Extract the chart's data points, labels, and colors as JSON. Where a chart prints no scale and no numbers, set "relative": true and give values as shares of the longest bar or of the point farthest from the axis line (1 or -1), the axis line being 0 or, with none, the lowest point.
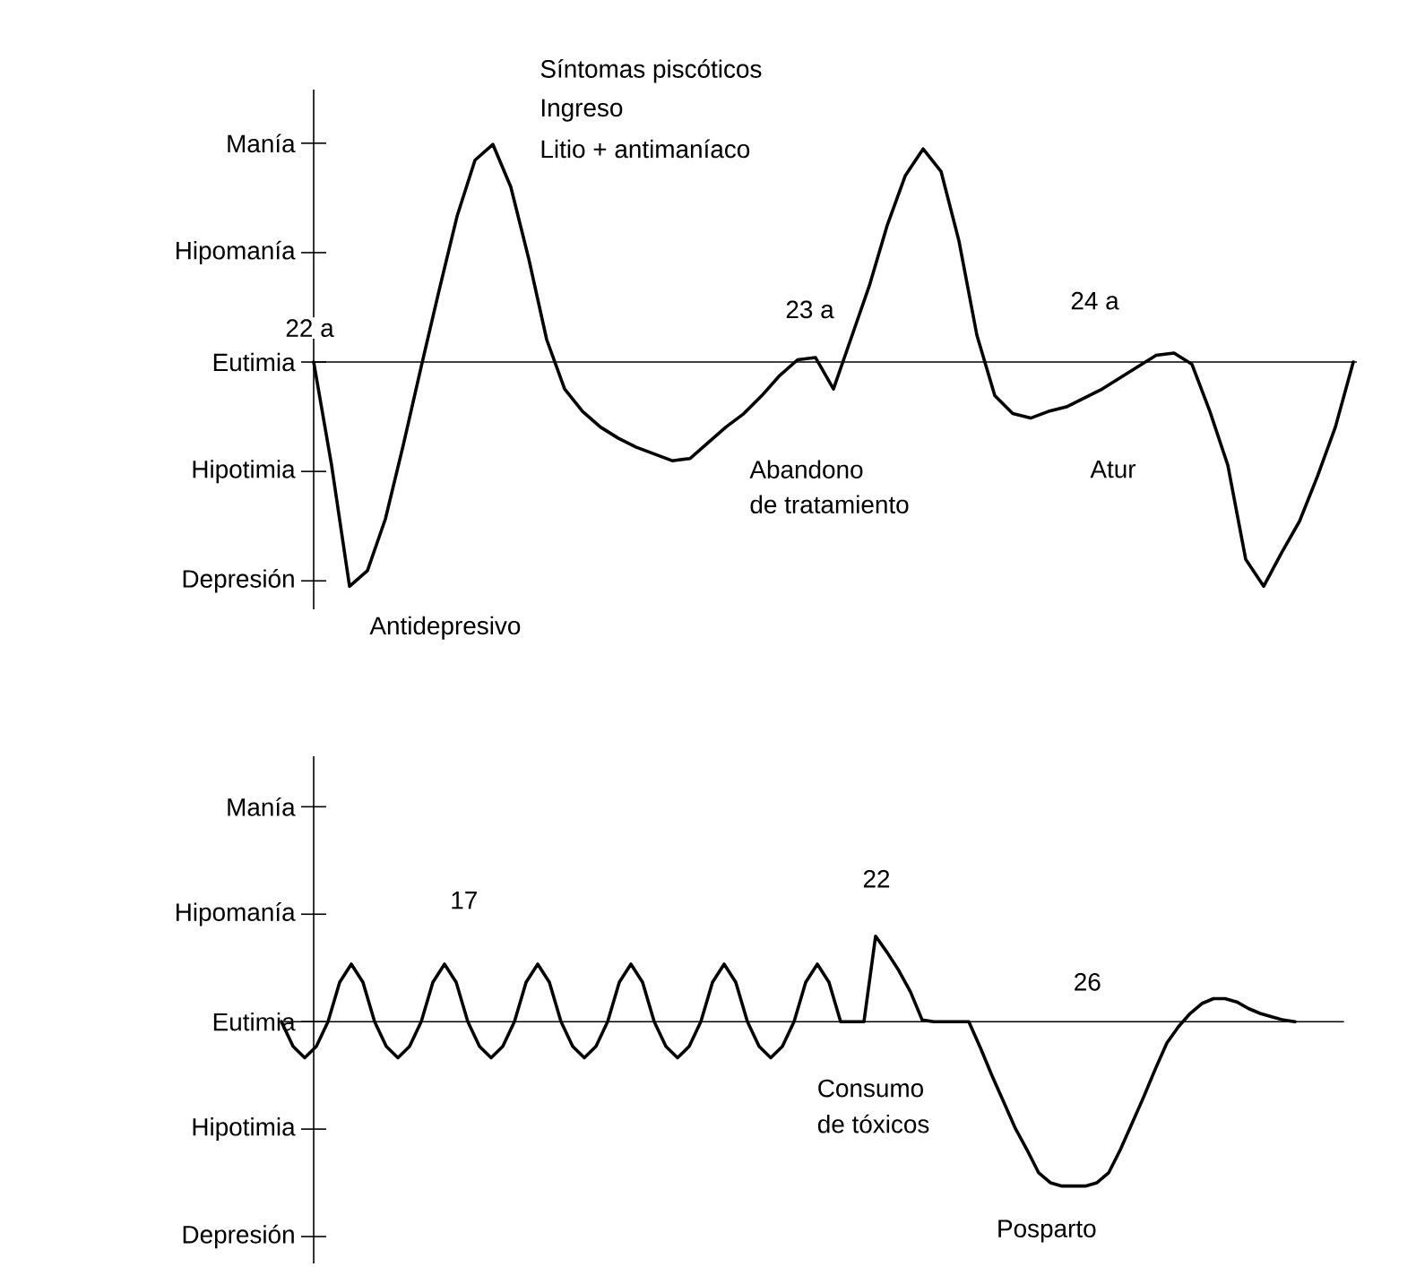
{
  "chart_data": [
    {
      "type": "line",
      "color": "#000000",
      "relative": true,
      "categories": [
        null,
        null,
        null,
        null,
        null,
        null,
        null,
        null,
        null,
        null,
        null,
        null,
        null,
        null,
        null,
        null,
        null,
        null,
        null,
        null,
        null,
        null,
        null,
        null,
        null,
        null,
        null,
        null,
        null,
        null,
        null,
        null,
        null,
        null,
        null,
        null,
        null,
        null,
        null,
        null,
        null,
        null,
        null,
        null,
        null,
        null,
        null,
        null,
        null,
        null,
        null,
        null,
        null,
        null,
        null,
        null,
        null,
        null,
        null
      ],
      "values": [
        0,
        -0.46,
        -1,
        -0.93,
        -0.7,
        -0.37,
        -0.02,
        0.32,
        0.65,
        0.9,
        0.97,
        0.78,
        0.46,
        0.1,
        -0.12,
        -0.22,
        -0.29,
        -0.34,
        -0.38,
        -0.41,
        -0.44,
        -0.43,
        -0.36,
        -0.29,
        -0.23,
        -0.15,
        -0.06,
        0.01,
        0.02,
        -0.12,
        0.11,
        0.34,
        0.61,
        0.83,
        0.95,
        0.85,
        0.54,
        0.12,
        -0.15,
        -0.23,
        -0.25,
        -0.22,
        -0.2,
        -0.16,
        -0.12,
        -0.07,
        -0.02,
        0.03,
        0.04,
        -0.01,
        -0.22,
        -0.46,
        -0.88,
        -1,
        -0.85,
        -0.71,
        -0.51,
        -0.29,
        0
      ],
      "tick_labels": false,
      "ref_lines": [
        {
          "axis": "y",
          "value": 0
        }
      ],
      "annotations": [
        "Manía",
        "Hipomanía",
        "Eutimia",
        "Hipotimia",
        "Depresión",
        "22 a",
        "Síntomas piscóticos",
        "Ingreso",
        "Litio + antimaníaco",
        "Antidepresivo",
        "23 a",
        "Abandono",
        "de tratamiento",
        "24 a",
        "Atur"
      ]
    },
    {
      "type": "line",
      "color": "#000000",
      "relative": true,
      "categories": [
        null,
        null,
        null,
        null,
        null,
        null,
        null,
        null,
        null,
        null,
        null,
        null,
        null,
        null,
        null,
        null,
        null,
        null,
        null,
        null,
        null,
        null,
        null,
        null,
        null,
        null,
        null,
        null,
        null,
        null,
        null,
        null,
        null,
        null,
        null,
        null,
        null,
        null,
        null,
        null,
        null,
        null,
        null,
        null,
        null,
        null,
        null,
        null,
        null,
        null,
        null,
        null,
        null,
        null,
        null,
        null,
        null,
        null,
        null,
        null,
        null,
        null,
        null,
        null,
        null,
        null,
        null,
        null,
        null,
        null,
        null,
        null,
        null,
        null,
        null,
        null,
        null,
        null,
        null,
        null,
        null,
        null,
        null,
        null,
        null,
        null,
        null,
        null
      ],
      "values": [
        0,
        -0.15,
        -0.22,
        -0.15,
        0,
        0.24,
        0.35,
        0.24,
        0,
        -0.15,
        -0.22,
        -0.15,
        0,
        0.24,
        0.35,
        0.24,
        0,
        -0.15,
        -0.22,
        -0.15,
        0,
        0.24,
        0.35,
        0.24,
        0,
        -0.15,
        -0.22,
        -0.15,
        0,
        0.24,
        0.35,
        0.24,
        0,
        -0.15,
        -0.22,
        -0.15,
        0,
        0.24,
        0.35,
        0.24,
        0,
        -0.15,
        -0.22,
        -0.15,
        0,
        0.24,
        0.35,
        0.24,
        0,
        0,
        0,
        0.52,
        0.42,
        0.31,
        0.18,
        0.01,
        0,
        0,
        0,
        0,
        -0.16,
        -0.33,
        -0.49,
        -0.65,
        -0.78,
        -0.92,
        -0.98,
        -1,
        -1,
        -1,
        -0.98,
        -0.92,
        -0.78,
        -0.62,
        -0.46,
        -0.29,
        -0.13,
        -0.03,
        0.05,
        0.11,
        0.14,
        0.14,
        0.12,
        0.08,
        0.05,
        0.03,
        0.01,
        0
      ],
      "tick_labels": false,
      "ref_lines": [
        {
          "axis": "y",
          "value": 0
        }
      ],
      "annotations": [
        "Manía",
        "Hipomanía",
        "Eutimia",
        "Hipotimia",
        "Depresión",
        "17",
        "22",
        "Consumo",
        "de tóxicos",
        "26",
        "Posparto"
      ]
    }
  ]
}
